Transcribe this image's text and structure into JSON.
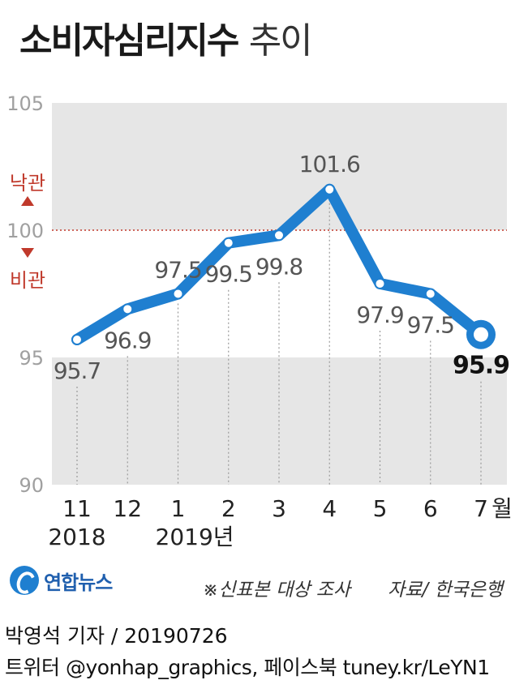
{
  "title": {
    "main": "소비자심리지수",
    "sub": "추이"
  },
  "chart_data": {
    "type": "line",
    "x": [
      "11",
      "12",
      "1",
      "2",
      "3",
      "4",
      "5",
      "6",
      "7"
    ],
    "year_labels": [
      "2018",
      "",
      "2019년",
      "",
      "",
      "",
      "",
      "",
      ""
    ],
    "month_unit": "월",
    "values": [
      95.7,
      96.9,
      97.5,
      99.5,
      99.8,
      101.6,
      97.9,
      97.5,
      95.9
    ],
    "value_labels": [
      "95.7",
      "96.9",
      "97.5",
      "99.5",
      "99.8",
      "101.6",
      "97.9",
      "97.5",
      "95.9"
    ],
    "ylim": [
      90,
      105
    ],
    "yticks": [
      "90",
      "95",
      "100",
      "105"
    ],
    "reference_line": 100,
    "optimism_label": "낙관",
    "pessimism_label": "비관",
    "line_color": "#1f7fd0",
    "reference_color": "#c0392b",
    "shade_color": "#e6e6e6",
    "highlight_last": true
  },
  "footer": {
    "logo": "연합뉴스",
    "note": "※신표본 대상 조사",
    "source": "자료/ 한국은행",
    "byline": "박영석 기자 /  20190726",
    "social": "트위터 @yonhap_graphics, 페이스북 tuney.kr/LeYN1"
  }
}
